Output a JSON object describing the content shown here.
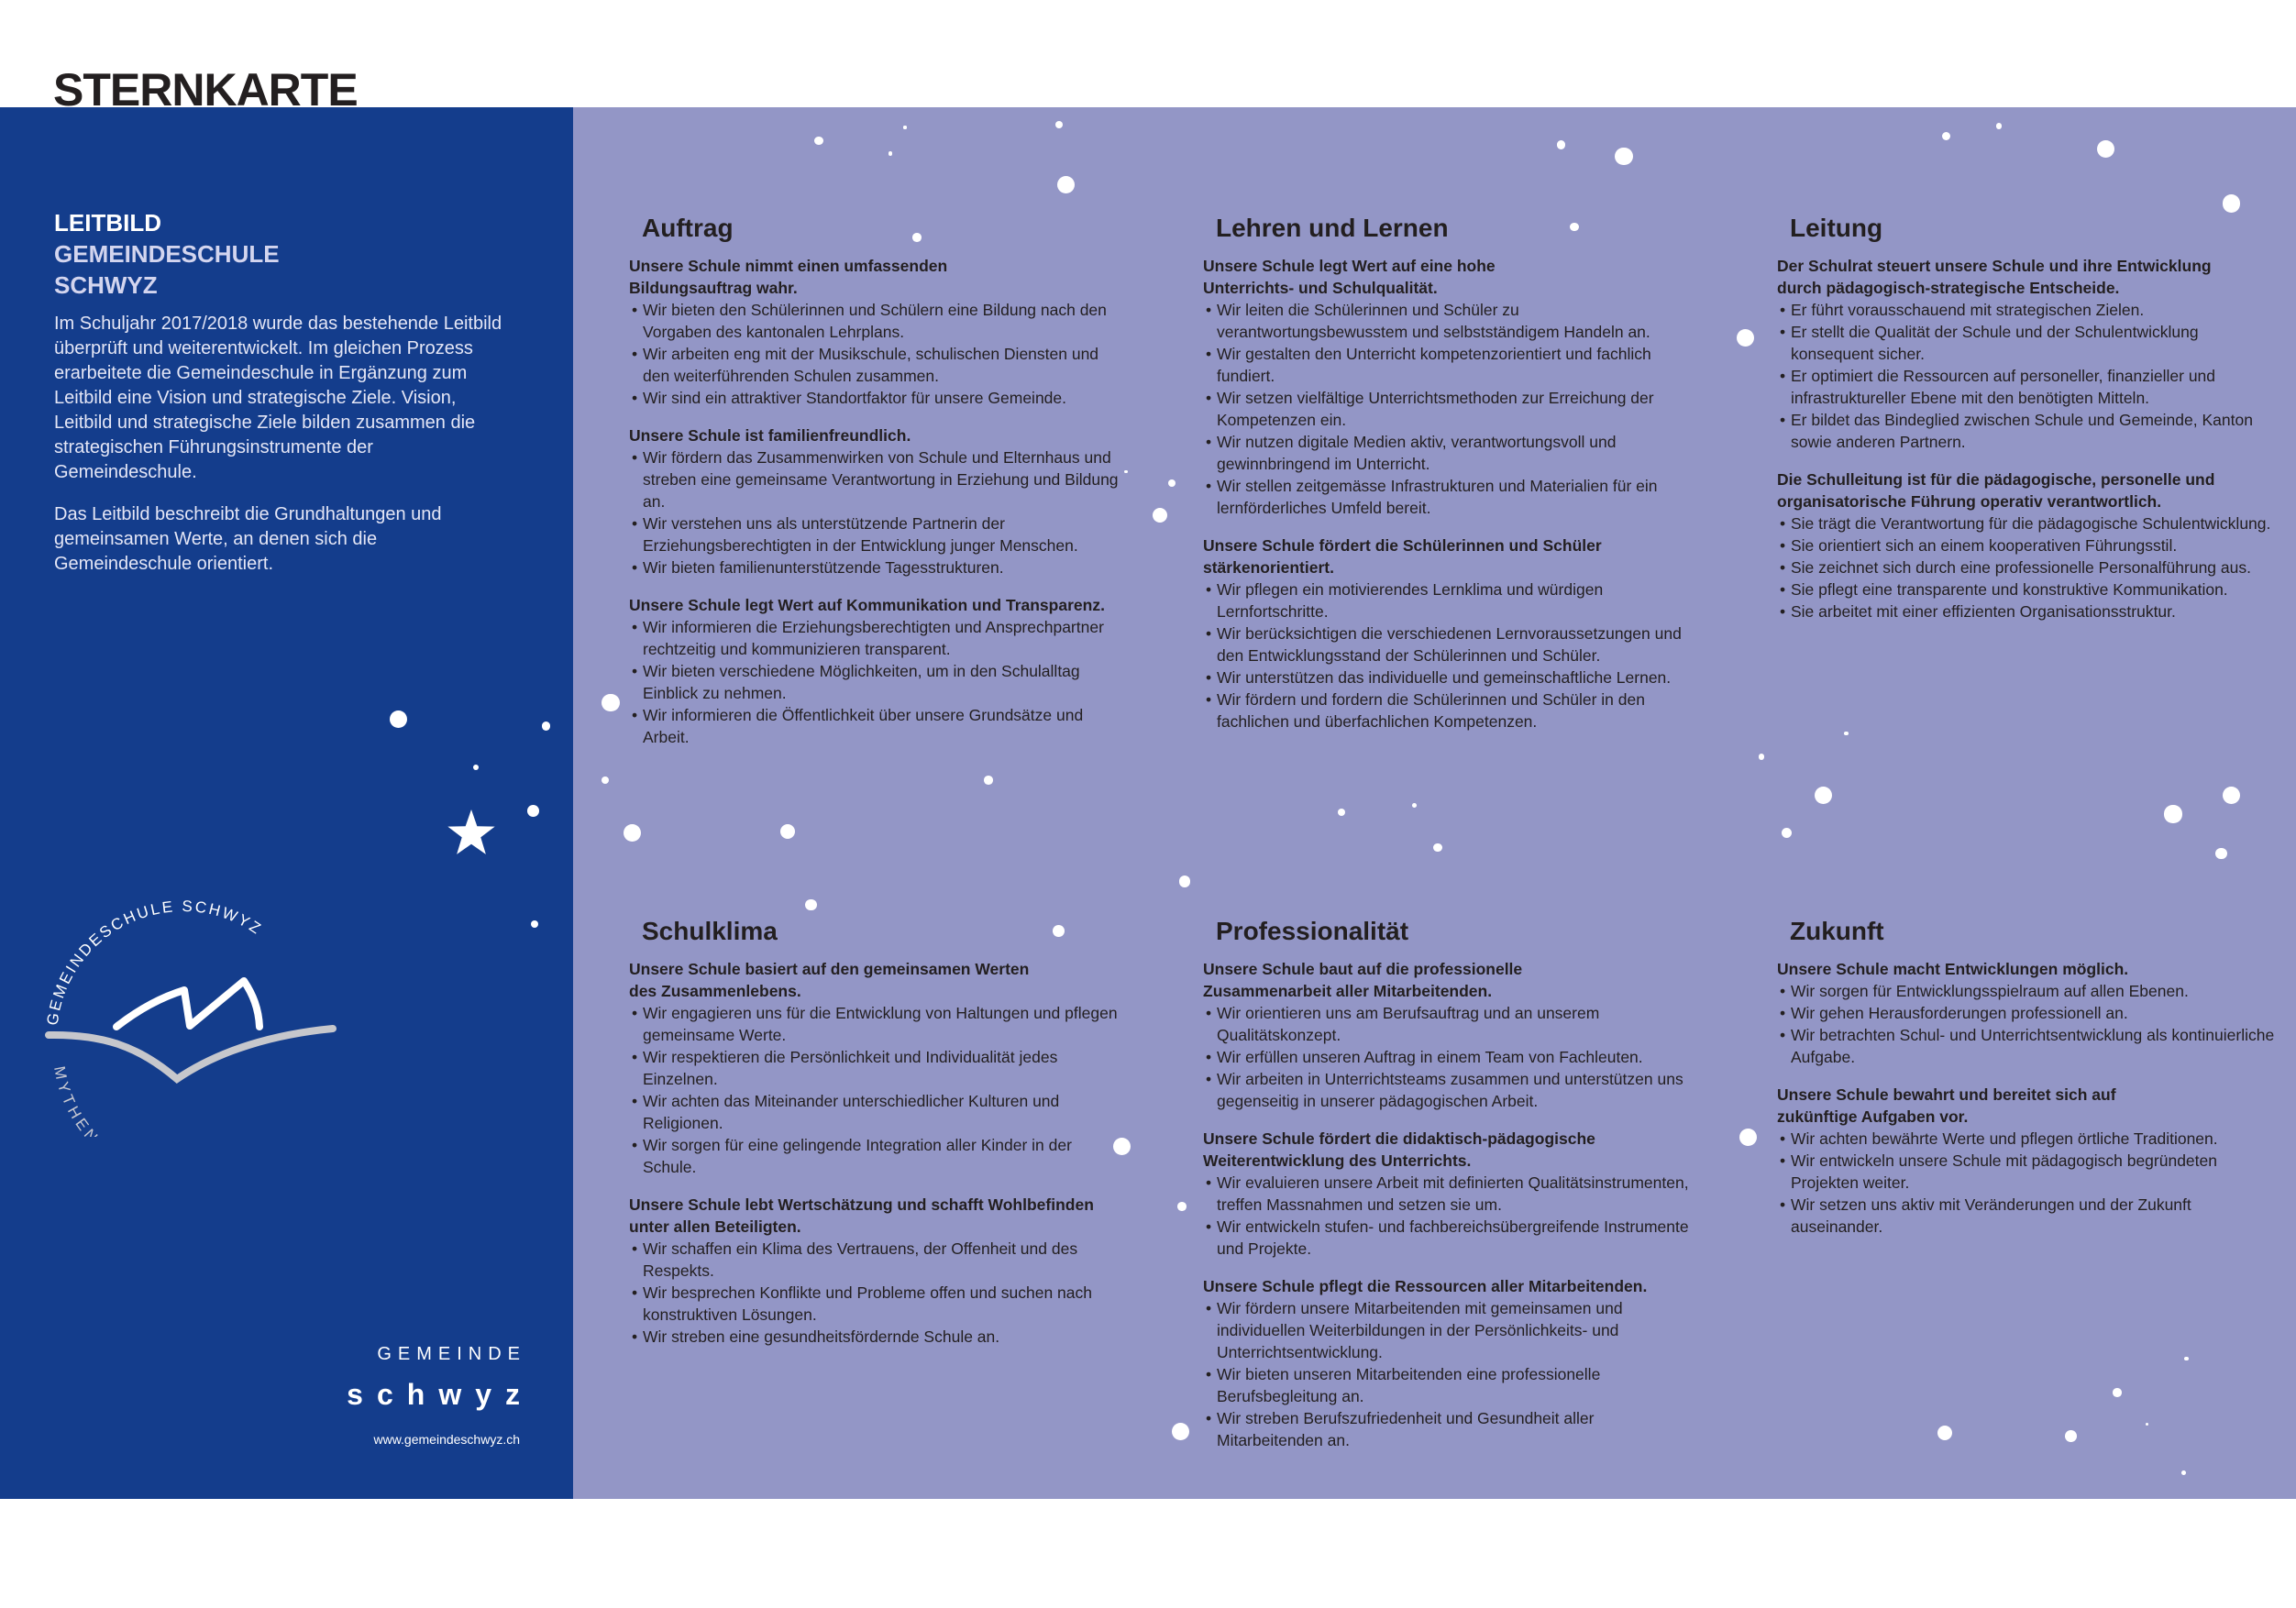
{
  "document_title": "STERNKARTE",
  "left_panel": {
    "title_line1": "LEITBILD",
    "title_line2": "GEMEINDESCHULE",
    "title_line3": "SCHWYZ",
    "paragraphs": [
      "Im Schuljahr 2017/2018 wurde das bestehende Leitbild überprüft und weiterentwickelt. Im gleichen Prozess erarbeitete die Gemeindeschule in Ergänzung zum Leitbild eine Vision und strategische Ziele. Vision, Leitbild und strategische Ziele bilden zusammen die strategischen Führungsinstrumente der Gemeindeschule.",
      "Das Leitbild beschreibt die Grundhaltungen und gemeinsamen Werte, an denen sich die Gemeindeschule orientiert."
    ],
    "logo": {
      "top_text": "GEMEINDESCHULE SCHWYZ",
      "bottom_text": "MYTHENDRIN UNTERWEGS"
    },
    "brand": {
      "line1": "GEMEINDE",
      "line2": "schwyz",
      "url": "www.gemeindeschwyz.ch"
    }
  },
  "colors": {
    "left_panel": "#143d8c",
    "main_panel": "#9396c6",
    "text": "#231f20"
  },
  "sections": [
    {
      "title": "Auftrag",
      "blocks": [
        {
          "heading": "Unsere Schule nimmt einen umfassenden\nBildungsauftrag wahr.",
          "bullets": [
            "Wir bieten den Schülerinnen und Schülern eine Bildung nach den Vorgaben des kantonalen Lehrplans.",
            "Wir arbeiten eng mit der Musikschule, schulischen Diensten und den weiterführenden Schulen zusammen.",
            "Wir sind ein attraktiver Standortfaktor für unsere Gemeinde."
          ]
        },
        {
          "heading": "Unsere Schule ist familienfreundlich.",
          "bullets": [
            "Wir fördern das Zusammenwirken von Schule und Elternhaus und streben eine gemeinsame Verantwortung in Erziehung und Bildung an.",
            "Wir verstehen uns als unterstützende Partnerin der Erziehungsberechtigten in der Entwicklung junger Menschen.",
            "Wir bieten familienunterstützende Tagesstrukturen."
          ]
        },
        {
          "heading": "Unsere Schule legt Wert auf Kommunikation und Transparenz.",
          "bullets": [
            "Wir informieren die Erziehungsberechtigten und Ansprechpartner rechtzeitig und kommunizieren transparent.",
            "Wir bieten verschiedene Möglichkeiten, um in den Schulalltag Einblick zu nehmen.",
            "Wir informieren die Öffentlichkeit über unsere Grundsätze und Arbeit."
          ]
        }
      ]
    },
    {
      "title": "Lehren und Lernen",
      "blocks": [
        {
          "heading": "Unsere Schule legt Wert auf eine hohe\nUnterrichts- und Schulqualität.",
          "bullets": [
            "Wir leiten die Schülerinnen und Schüler zu verantwortungsbewusstem und selbstständigem Handeln an.",
            "Wir gestalten den Unterricht kompetenzorientiert und fachlich fundiert.",
            "Wir setzen vielfältige Unterrichtsmethoden zur Erreichung der Kompetenzen ein.",
            "Wir nutzen digitale Medien aktiv, verantwortungsvoll und gewinnbringend im Unterricht.",
            "Wir stellen zeitgemässe Infrastrukturen und Materialien für ein lernförderliches Umfeld bereit."
          ]
        },
        {
          "heading": "Unsere Schule fördert die Schülerinnen und Schüler\nstärkenorientiert.",
          "bullets": [
            "Wir pflegen ein motivierendes Lernklima und würdigen Lernfortschritte.",
            "Wir berücksichtigen die verschiedenen Lernvoraussetzungen und den Entwicklungsstand der Schülerinnen und Schüler.",
            "Wir unterstützen das individuelle und gemeinschaftliche Lernen.",
            "Wir fördern und fordern die Schülerinnen und Schüler in den fachlichen und überfachlichen Kompetenzen."
          ]
        }
      ]
    },
    {
      "title": "Leitung",
      "blocks": [
        {
          "heading": "Der Schulrat steuert unsere Schule und ihre Entwicklung\ndurch pädagogisch-strategische Entscheide.",
          "bullets": [
            "Er führt vorausschauend mit strategischen Zielen.",
            "Er stellt die Qualität der Schule und der Schulentwicklung konsequent sicher.",
            "Er optimiert die Ressourcen auf personeller, finanzieller und infrastruktureller Ebene mit den benötigten Mitteln.",
            "Er bildet das Bindeglied zwischen Schule und Gemeinde, Kanton sowie anderen Partnern."
          ]
        },
        {
          "heading": "Die Schulleitung ist für die pädagogische, personelle und\norganisatorische Führung operativ verantwortlich.",
          "bullets": [
            "Sie trägt die Verantwortung für die pädagogische Schulentwicklung.",
            "Sie orientiert sich an einem kooperativen Führungsstil.",
            "Sie zeichnet sich durch eine professionelle Personalführung aus.",
            "Sie pflegt eine transparente und konstruktive Kommunikation.",
            "Sie arbeitet mit einer effizienten Organisationsstruktur."
          ]
        }
      ]
    },
    {
      "title": "Schulklima",
      "blocks": [
        {
          "heading": "Unsere Schule basiert auf den gemeinsamen Werten\ndes Zusammenlebens.",
          "bullets": [
            "Wir engagieren uns für die Entwicklung von Haltungen und pflegen gemeinsame Werte.",
            "Wir respektieren die Persönlichkeit und Individualität jedes Einzelnen.",
            "Wir achten das Miteinander unterschiedlicher Kulturen und Religionen.",
            "Wir sorgen für eine gelingende Integration aller Kinder in der Schule."
          ]
        },
        {
          "heading": "Unsere Schule lebt Wertschätzung und schafft Wohlbefinden\nunter allen Beteiligten.",
          "bullets": [
            "Wir schaffen ein Klima des Vertrauens, der Offenheit und des Respekts.",
            "Wir besprechen Konflikte und Probleme offen und suchen nach konstruktiven Lösungen.",
            "Wir streben eine gesundheitsfördernde Schule an."
          ]
        }
      ]
    },
    {
      "title": "Professionalität",
      "blocks": [
        {
          "heading": "Unsere Schule baut auf die professionelle\nZusammenarbeit aller Mitarbeitenden.",
          "bullets": [
            "Wir orientieren uns am Berufsauftrag und an unserem Qualitätskonzept.",
            "Wir erfüllen unseren Auftrag in einem Team von Fachleuten.",
            "Wir arbeiten in Unterrichtsteams zusammen und unterstützen uns gegenseitig in unserer pädagogischen Arbeit."
          ]
        },
        {
          "heading": "Unsere Schule fördert die didaktisch-pädagogische\nWeiterentwicklung des Unterrichts.",
          "bullets": [
            "Wir evaluieren unsere Arbeit mit definierten Qualitätsinstrumenten, treffen Massnahmen und setzen sie um.",
            "Wir entwickeln stufen- und fachbereichsübergreifende Instrumente und Projekte."
          ]
        },
        {
          "heading": "Unsere Schule pflegt die Ressourcen aller Mitarbeitenden.",
          "bullets": [
            "Wir fördern unsere Mitarbeitenden mit gemeinsamen und individuellen Weiterbildungen in der Persönlichkeits- und Unterrichtsentwicklung.",
            "Wir bieten unseren Mitarbeitenden eine professionelle Berufsbegleitung an.",
            "Wir streben Berufszufriedenheit und Gesundheit aller Mitarbeitenden an."
          ]
        }
      ]
    },
    {
      "title": "Zukunft",
      "blocks": [
        {
          "heading": "Unsere Schule macht Entwicklungen möglich.",
          "bullets": [
            "Wir sorgen für Entwicklungsspielraum auf allen Ebenen.",
            "Wir gehen Herausforderungen professionell an.",
            "Wir betrachten Schul- und Unterrichtsentwicklung als kontinuierliche Aufgabe."
          ]
        },
        {
          "heading": "Unsere Schule bewahrt und bereitet sich auf\nzukünftige Aufgaben vor.",
          "bullets": [
            "Wir achten bewährte Werte und pflegen örtliche Traditionen.",
            "Wir entwickeln unsere Schule mit pädagogisch begründeten Projekten weiter.",
            "Wir setzen uns aktiv mit Veränderungen und der Zukunft auseinander."
          ]
        }
      ]
    }
  ]
}
